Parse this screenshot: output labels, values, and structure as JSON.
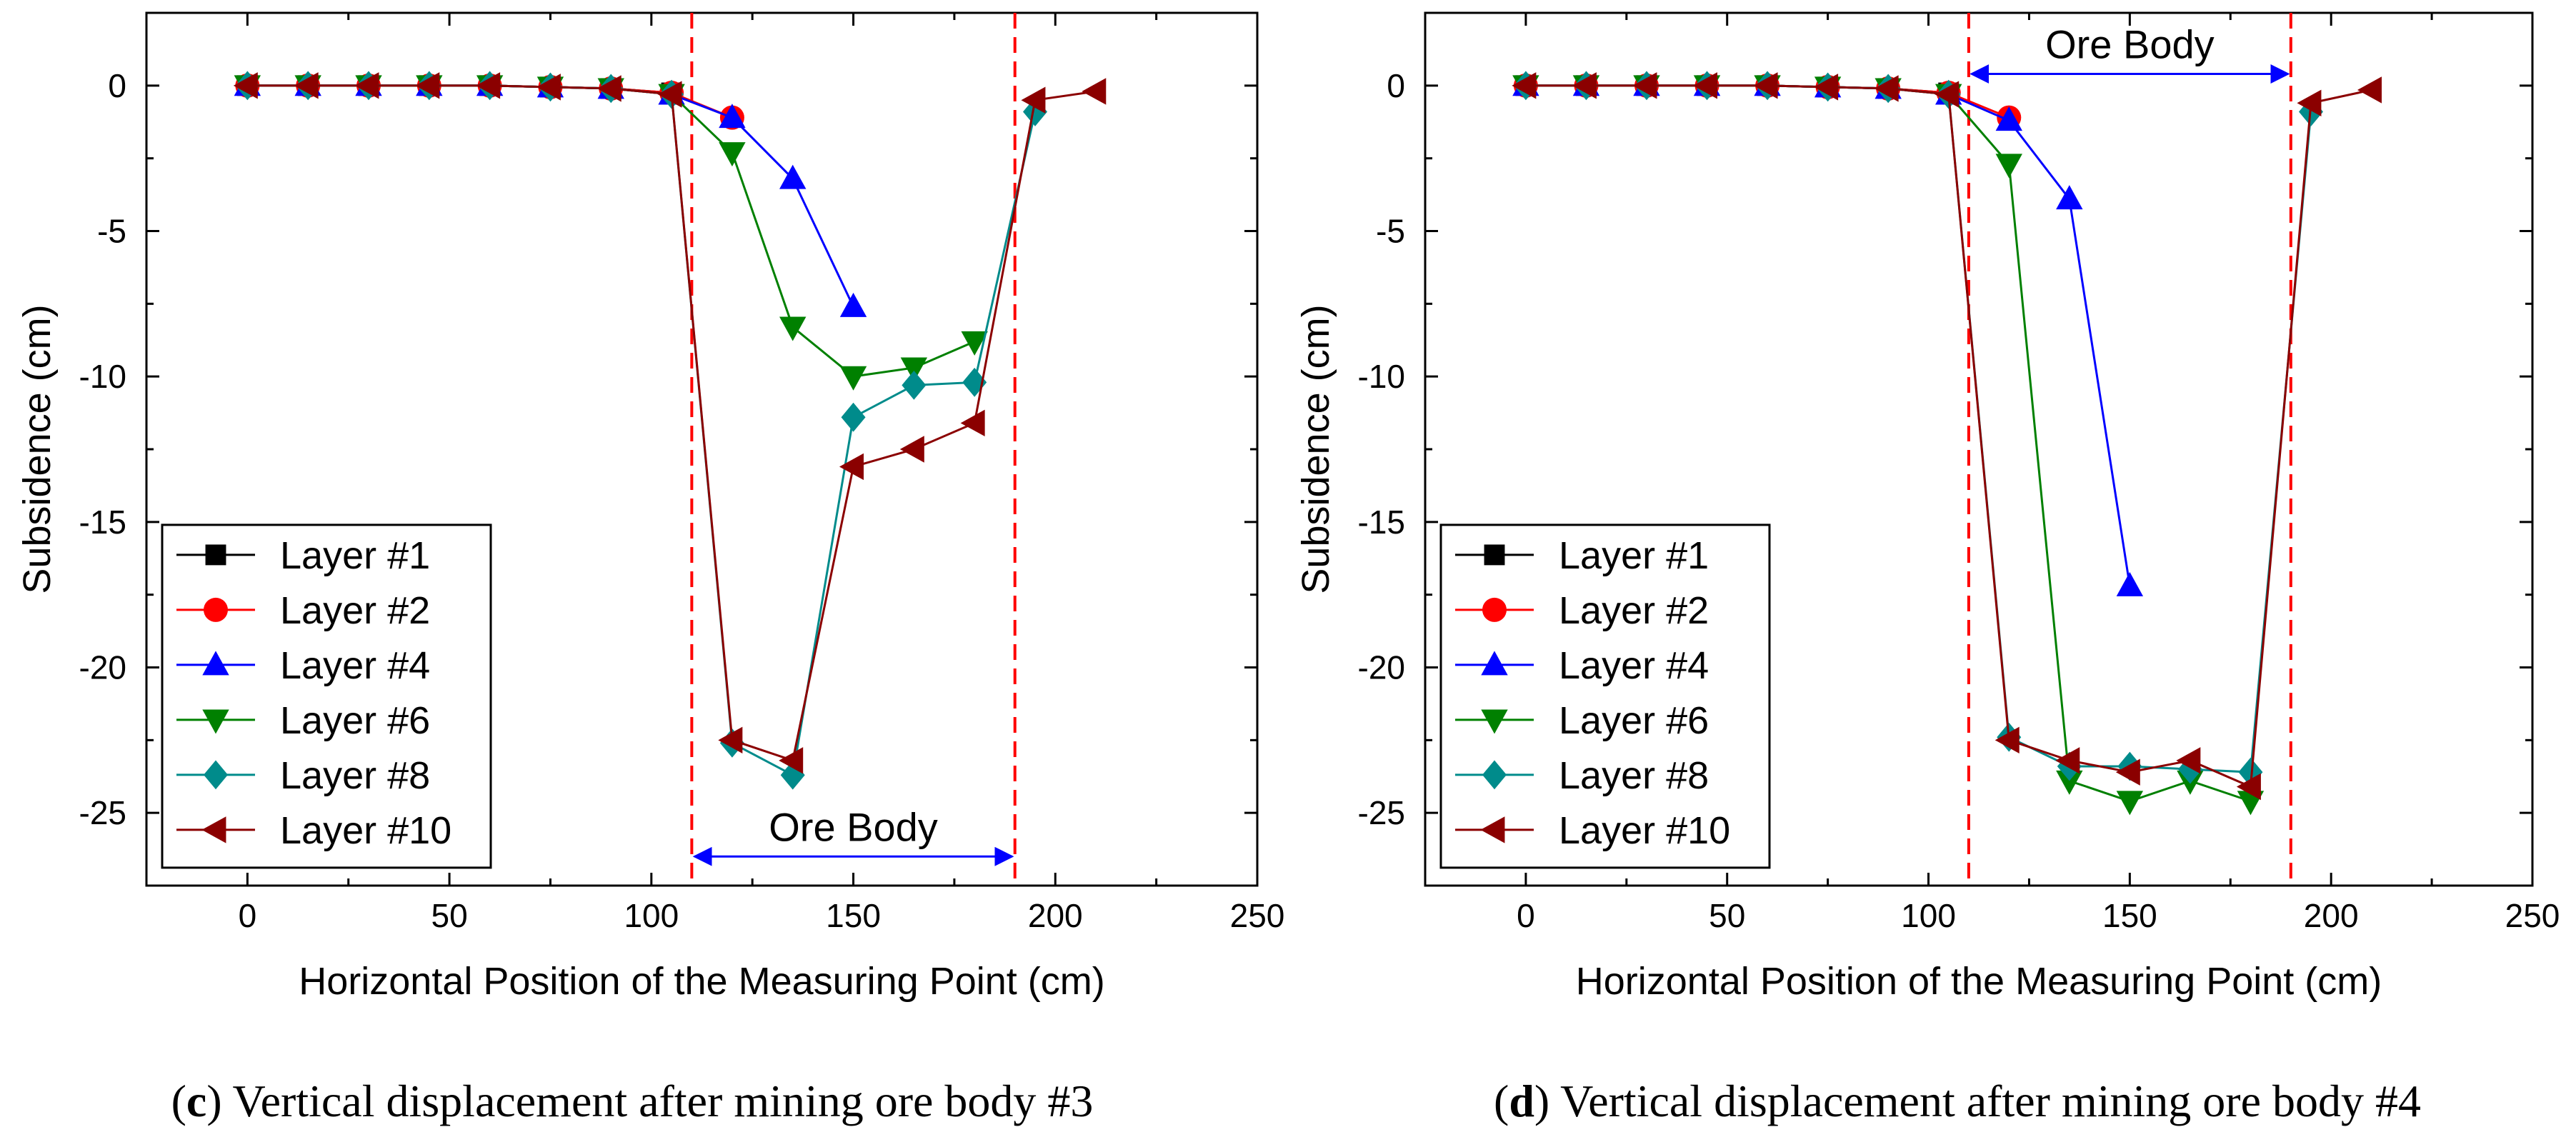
{
  "figure": {
    "panels": [
      {
        "caption_letter": "c",
        "caption_text": " Vertical displacement after mining ore body #3"
      },
      {
        "caption_letter": "d",
        "caption_text": " Vertical displacement after mining ore body #4"
      }
    ]
  },
  "colors": {
    "layer1": "#000000",
    "layer2": "#ff0000",
    "layer4": "#0000ff",
    "layer6": "#008000",
    "layer8": "#008b8b",
    "layer10": "#8b0000",
    "ore_boundary": "#ff0000",
    "ore_arrow": "#0000ff"
  },
  "chart_data": [
    {
      "type": "line",
      "title": "",
      "xlabel": "Horizontal  Position  of  the Measuring  Point (cm)",
      "ylabel": "Subsidence (cm)",
      "xlim": [
        -25,
        250
      ],
      "ylim": [
        -27.5,
        2.5
      ],
      "xticks": [
        0,
        50,
        100,
        150,
        200,
        250
      ],
      "yticks": [
        0,
        -5,
        -10,
        -15,
        -20,
        -25
      ],
      "legend_position": "bottom-left",
      "annotations": [
        {
          "text": "Ore Body",
          "x_start": 110,
          "x_end": 190,
          "y": -26.5,
          "type": "double-arrow",
          "boundaries": [
            110,
            190
          ]
        }
      ],
      "series": [
        {
          "name": "Layer #1",
          "marker": "square",
          "color": "#000000",
          "x": [
            0,
            15,
            30,
            45,
            60,
            75,
            90,
            105
          ],
          "y": [
            0,
            0,
            0,
            0,
            0,
            -0.05,
            -0.1,
            -0.25
          ]
        },
        {
          "name": "Layer #2",
          "marker": "circle",
          "color": "#ff0000",
          "x": [
            0,
            15,
            30,
            45,
            60,
            75,
            90,
            105,
            120
          ],
          "y": [
            0,
            0,
            0,
            0,
            0,
            -0.05,
            -0.1,
            -0.25,
            -1.1
          ]
        },
        {
          "name": "Layer #4",
          "marker": "triangle-up",
          "color": "#0000ff",
          "x": [
            0,
            15,
            30,
            45,
            60,
            75,
            90,
            105,
            120,
            135,
            150
          ],
          "y": [
            0,
            0,
            0,
            0,
            0,
            -0.05,
            -0.1,
            -0.3,
            -1.1,
            -3.2,
            -7.6
          ]
        },
        {
          "name": "Layer #6",
          "marker": "triangle-down",
          "color": "#008000",
          "x": [
            0,
            15,
            30,
            45,
            60,
            75,
            90,
            105,
            120,
            135,
            150,
            165,
            180
          ],
          "y": [
            0,
            0,
            0,
            0,
            0,
            -0.05,
            -0.1,
            -0.3,
            -2.3,
            -8.3,
            -10,
            -9.7,
            -8.8
          ]
        },
        {
          "name": "Layer #8",
          "marker": "diamond",
          "color": "#008b8b",
          "x": [
            0,
            15,
            30,
            45,
            60,
            75,
            90,
            105,
            120,
            135,
            150,
            165,
            180,
            195
          ],
          "y": [
            0,
            0,
            0,
            0,
            0,
            -0.05,
            -0.1,
            -0.3,
            -22.6,
            -23.7,
            -11.4,
            -10.3,
            -10.2,
            -0.9
          ]
        },
        {
          "name": "Layer #10",
          "marker": "triangle-left",
          "color": "#8b0000",
          "x": [
            0,
            15,
            30,
            45,
            60,
            75,
            90,
            105,
            120,
            135,
            150,
            165,
            180,
            195,
            210
          ],
          "y": [
            0,
            0,
            0,
            0,
            0,
            -0.05,
            -0.1,
            -0.3,
            -22.5,
            -23.2,
            -13.1,
            -12.5,
            -11.6,
            -0.5,
            -0.2
          ]
        }
      ]
    },
    {
      "type": "line",
      "title": "",
      "xlabel": "Horizontal  Position  of  the Measuring  Point (cm)",
      "ylabel": "Subsidence (cm)",
      "xlim": [
        -25,
        250
      ],
      "ylim": [
        -27.5,
        2.5
      ],
      "xticks": [
        0,
        50,
        100,
        150,
        200,
        250
      ],
      "yticks": [
        0,
        -5,
        -10,
        -15,
        -20,
        -25
      ],
      "legend_position": "bottom-left",
      "annotations": [
        {
          "text": "Ore Body",
          "x_start": 110,
          "x_end": 190,
          "y": 0.4,
          "type": "double-arrow",
          "boundaries": [
            110,
            190
          ]
        }
      ],
      "series": [
        {
          "name": "Layer #1",
          "marker": "square",
          "color": "#000000",
          "x": [
            0,
            15,
            30,
            45,
            60,
            75,
            90,
            105
          ],
          "y": [
            0,
            0,
            0,
            0,
            0,
            -0.05,
            -0.1,
            -0.25
          ]
        },
        {
          "name": "Layer #2",
          "marker": "circle",
          "color": "#ff0000",
          "x": [
            0,
            15,
            30,
            45,
            60,
            75,
            90,
            105,
            120
          ],
          "y": [
            0,
            0,
            0,
            0,
            0,
            -0.05,
            -0.1,
            -0.25,
            -1.1
          ]
        },
        {
          "name": "Layer #4",
          "marker": "triangle-up",
          "color": "#0000ff",
          "x": [
            0,
            15,
            30,
            45,
            60,
            75,
            90,
            105,
            120,
            135,
            150
          ],
          "y": [
            0,
            0,
            0,
            0,
            0,
            -0.05,
            -0.1,
            -0.3,
            -1.2,
            -3.9,
            -17.2
          ]
        },
        {
          "name": "Layer #6",
          "marker": "triangle-down",
          "color": "#008000",
          "x": [
            0,
            15,
            30,
            45,
            60,
            75,
            90,
            105,
            120,
            135,
            150,
            165,
            180
          ],
          "y": [
            0,
            0,
            0,
            0,
            0,
            -0.05,
            -0.1,
            -0.3,
            -2.7,
            -23.9,
            -24.6,
            -23.9,
            -24.6
          ]
        },
        {
          "name": "Layer #8",
          "marker": "diamond",
          "color": "#008b8b",
          "x": [
            0,
            15,
            30,
            45,
            60,
            75,
            90,
            105,
            120,
            135,
            150,
            165,
            180,
            195
          ],
          "y": [
            0,
            0,
            0,
            0,
            0,
            -0.05,
            -0.1,
            -0.3,
            -22.4,
            -23.4,
            -23.4,
            -23.5,
            -23.6,
            -0.9
          ]
        },
        {
          "name": "Layer #10",
          "marker": "triangle-left",
          "color": "#8b0000",
          "x": [
            0,
            15,
            30,
            45,
            60,
            75,
            90,
            105,
            120,
            135,
            150,
            165,
            180,
            195,
            210
          ],
          "y": [
            0,
            0,
            0,
            0,
            0,
            -0.05,
            -0.1,
            -0.3,
            -22.5,
            -23.2,
            -23.6,
            -23.2,
            -24.1,
            -0.6,
            -0.15
          ]
        }
      ]
    }
  ]
}
